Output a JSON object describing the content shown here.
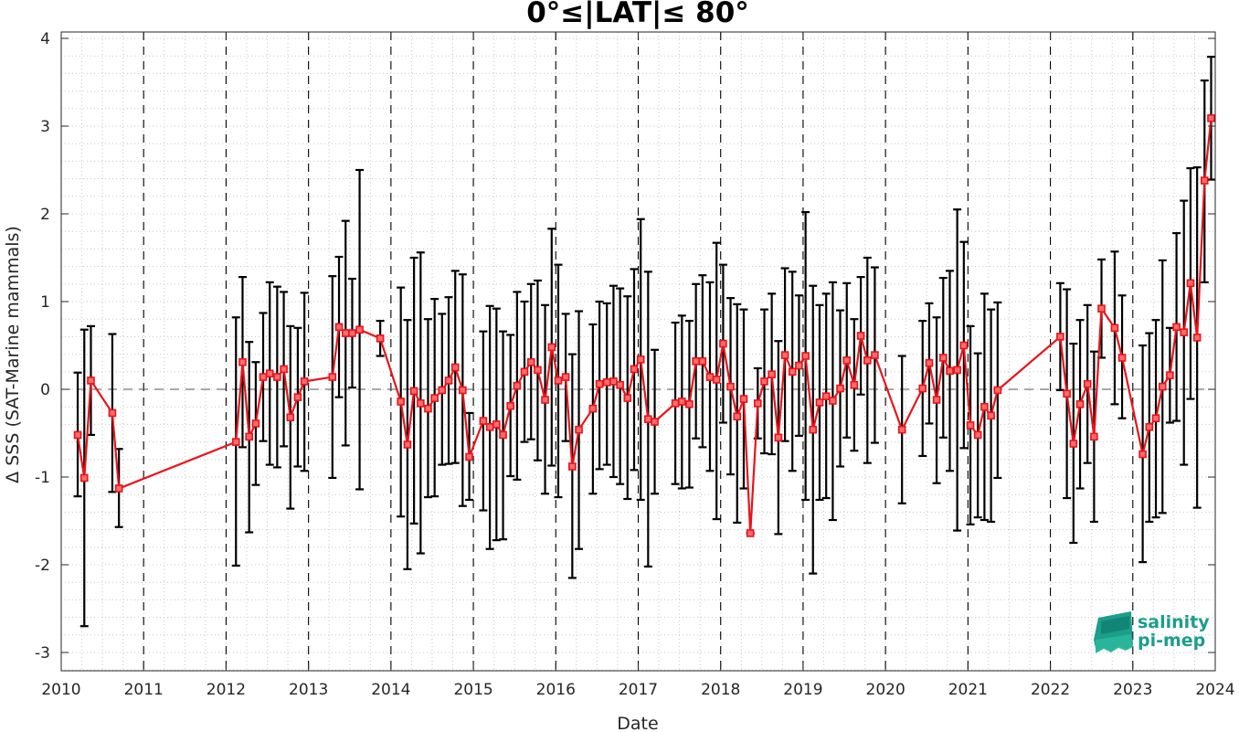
{
  "chart_data": {
    "type": "line",
    "title": "0°≤|LAT|≤ 80°",
    "xlabel": "Date",
    "ylabel": "Δ SSS (SAT-Marine mammals)",
    "xlim": [
      2010,
      2024
    ],
    "ylim": [
      -3.3,
      4.1
    ],
    "xticks": [
      "2010",
      "2011",
      "2012",
      "2013",
      "2014",
      "2015",
      "2016",
      "2017",
      "2018",
      "2019",
      "2020",
      "2021",
      "2022",
      "2023",
      "2024"
    ],
    "yticks": [
      "-3",
      "-2",
      "-1",
      "0",
      "1",
      "2",
      "3",
      "4"
    ],
    "grid": "dotted minor",
    "year_separators": "dashed vertical lines",
    "zero_line": "dashed",
    "series": [
      {
        "color": "#e8141b",
        "marker": "square",
        "error_bar_color": "#000000",
        "points": [
          {
            "x": 2010.2,
            "y": -0.52,
            "lo": -1.22,
            "hi": 0.19
          },
          {
            "x": 2010.28,
            "y": -1.01,
            "lo": -2.7,
            "hi": 0.68
          },
          {
            "x": 2010.36,
            "y": 0.1,
            "lo": -0.52,
            "hi": 0.72
          },
          {
            "x": 2010.62,
            "y": -0.27,
            "lo": -1.17,
            "hi": 0.63
          },
          {
            "x": 2010.7,
            "y": -1.13,
            "lo": -1.57,
            "hi": -0.68
          },
          {
            "x": 2012.12,
            "y": -0.6,
            "lo": -2.01,
            "hi": 0.82
          },
          {
            "x": 2012.2,
            "y": 0.31,
            "lo": -0.66,
            "hi": 1.28
          },
          {
            "x": 2012.28,
            "y": -0.54,
            "lo": -1.63,
            "hi": 0.54
          },
          {
            "x": 2012.36,
            "y": -0.39,
            "lo": -1.09,
            "hi": 0.31
          },
          {
            "x": 2012.45,
            "y": 0.14,
            "lo": -0.59,
            "hi": 0.87
          },
          {
            "x": 2012.53,
            "y": 0.18,
            "lo": -0.86,
            "hi": 1.22
          },
          {
            "x": 2012.62,
            "y": 0.14,
            "lo": -0.89,
            "hi": 1.17
          },
          {
            "x": 2012.7,
            "y": 0.23,
            "lo": -0.65,
            "hi": 1.11
          },
          {
            "x": 2012.78,
            "y": -0.32,
            "lo": -1.36,
            "hi": 0.72
          },
          {
            "x": 2012.87,
            "y": -0.09,
            "lo": -0.88,
            "hi": 0.7
          },
          {
            "x": 2012.95,
            "y": 0.09,
            "lo": -0.93,
            "hi": 1.1
          },
          {
            "x": 2013.29,
            "y": 0.14,
            "lo": -1.01,
            "hi": 1.29
          },
          {
            "x": 2013.37,
            "y": 0.71,
            "lo": -0.09,
            "hi": 1.51
          },
          {
            "x": 2013.45,
            "y": 0.64,
            "lo": -0.64,
            "hi": 1.92
          },
          {
            "x": 2013.53,
            "y": 0.64,
            "lo": 0.02,
            "hi": 1.26
          },
          {
            "x": 2013.62,
            "y": 0.68,
            "lo": -1.14,
            "hi": 2.5
          },
          {
            "x": 2013.87,
            "y": 0.58,
            "lo": 0.38,
            "hi": 0.78
          },
          {
            "x": 2014.12,
            "y": -0.14,
            "lo": -1.45,
            "hi": 1.16
          },
          {
            "x": 2014.2,
            "y": -0.63,
            "lo": -2.05,
            "hi": 0.79
          },
          {
            "x": 2014.28,
            "y": -0.02,
            "lo": -1.53,
            "hi": 1.5
          },
          {
            "x": 2014.36,
            "y": -0.16,
            "lo": -1.87,
            "hi": 1.56
          },
          {
            "x": 2014.45,
            "y": -0.22,
            "lo": -1.23,
            "hi": 0.8
          },
          {
            "x": 2014.53,
            "y": -0.1,
            "lo": -1.22,
            "hi": 1.03
          },
          {
            "x": 2014.62,
            "y": -0.01,
            "lo": -0.86,
            "hi": 0.86
          },
          {
            "x": 2014.7,
            "y": 0.1,
            "lo": -0.85,
            "hi": 1.05
          },
          {
            "x": 2014.78,
            "y": 0.25,
            "lo": -0.84,
            "hi": 1.35
          },
          {
            "x": 2014.87,
            "y": -0.01,
            "lo": -1.33,
            "hi": 1.31
          },
          {
            "x": 2014.95,
            "y": -0.77,
            "lo": -1.26,
            "hi": -0.27
          },
          {
            "x": 2015.12,
            "y": -0.36,
            "lo": -1.38,
            "hi": 0.66
          },
          {
            "x": 2015.2,
            "y": -0.43,
            "lo": -1.82,
            "hi": 0.95
          },
          {
            "x": 2015.28,
            "y": -0.4,
            "lo": -1.72,
            "hi": 0.92
          },
          {
            "x": 2015.36,
            "y": -0.52,
            "lo": -1.71,
            "hi": 0.66
          },
          {
            "x": 2015.45,
            "y": -0.19,
            "lo": -0.99,
            "hi": 0.62
          },
          {
            "x": 2015.53,
            "y": 0.04,
            "lo": -1.03,
            "hi": 1.11
          },
          {
            "x": 2015.62,
            "y": 0.2,
            "lo": -0.6,
            "hi": 1.0
          },
          {
            "x": 2015.7,
            "y": 0.31,
            "lo": -0.57,
            "hi": 1.2
          },
          {
            "x": 2015.78,
            "y": 0.22,
            "lo": -0.81,
            "hi": 1.24
          },
          {
            "x": 2015.87,
            "y": -0.12,
            "lo": -1.19,
            "hi": 0.96
          },
          {
            "x": 2015.95,
            "y": 0.48,
            "lo": -0.87,
            "hi": 1.83
          },
          {
            "x": 2016.03,
            "y": 0.1,
            "lo": -1.23,
            "hi": 1.42
          },
          {
            "x": 2016.12,
            "y": 0.14,
            "lo": -0.59,
            "hi": 0.86
          },
          {
            "x": 2016.2,
            "y": -0.88,
            "lo": -2.15,
            "hi": 0.4
          },
          {
            "x": 2016.28,
            "y": -0.46,
            "lo": -1.82,
            "hi": 0.89
          },
          {
            "x": 2016.45,
            "y": -0.22,
            "lo": -1.19,
            "hi": 0.74
          },
          {
            "x": 2016.53,
            "y": 0.06,
            "lo": -0.91,
            "hi": 1.0
          },
          {
            "x": 2016.62,
            "y": 0.08,
            "lo": -0.86,
            "hi": 0.98
          },
          {
            "x": 2016.7,
            "y": 0.09,
            "lo": -1.0,
            "hi": 1.18
          },
          {
            "x": 2016.78,
            "y": 0.05,
            "lo": -1.08,
            "hi": 1.15
          },
          {
            "x": 2016.87,
            "y": -0.1,
            "lo": -1.25,
            "hi": 1.06
          },
          {
            "x": 2016.95,
            "y": 0.23,
            "lo": -0.92,
            "hi": 1.37
          },
          {
            "x": 2017.03,
            "y": 0.34,
            "lo": -1.26,
            "hi": 1.94
          },
          {
            "x": 2017.12,
            "y": -0.34,
            "lo": -2.02,
            "hi": 1.34
          },
          {
            "x": 2017.2,
            "y": -0.37,
            "lo": -1.19,
            "hi": 0.45
          },
          {
            "x": 2017.45,
            "y": -0.16,
            "lo": -1.08,
            "hi": 0.76
          },
          {
            "x": 2017.53,
            "y": -0.14,
            "lo": -1.13,
            "hi": 0.84
          },
          {
            "x": 2017.62,
            "y": -0.17,
            "lo": -1.12,
            "hi": 0.78
          },
          {
            "x": 2017.7,
            "y": 0.32,
            "lo": -0.56,
            "hi": 1.2
          },
          {
            "x": 2017.78,
            "y": 0.32,
            "lo": -0.66,
            "hi": 1.3
          },
          {
            "x": 2017.87,
            "y": 0.14,
            "lo": -0.93,
            "hi": 1.22
          },
          {
            "x": 2017.95,
            "y": 0.11,
            "lo": -1.48,
            "hi": 1.67
          },
          {
            "x": 2018.03,
            "y": 0.52,
            "lo": -0.38,
            "hi": 1.42
          },
          {
            "x": 2018.12,
            "y": 0.03,
            "lo": -0.97,
            "hi": 1.04
          },
          {
            "x": 2018.2,
            "y": -0.31,
            "lo": -1.52,
            "hi": 0.97
          },
          {
            "x": 2018.28,
            "y": -0.11,
            "lo": -1.13,
            "hi": 0.91
          },
          {
            "x": 2018.36,
            "y": -1.64,
            "lo": -1.64,
            "hi": -1.64
          },
          {
            "x": 2018.45,
            "y": -0.16,
            "lo": -0.56,
            "hi": 0.24
          },
          {
            "x": 2018.53,
            "y": 0.09,
            "lo": -0.73,
            "hi": 0.91
          },
          {
            "x": 2018.62,
            "y": 0.17,
            "lo": -0.74,
            "hi": 1.09
          },
          {
            "x": 2018.7,
            "y": -0.55,
            "lo": -1.65,
            "hi": 0.55
          },
          {
            "x": 2018.78,
            "y": 0.39,
            "lo": -0.59,
            "hi": 1.38
          },
          {
            "x": 2018.87,
            "y": 0.2,
            "lo": -0.93,
            "hi": 1.34
          },
          {
            "x": 2018.95,
            "y": 0.27,
            "lo": -0.53,
            "hi": 1.07
          },
          {
            "x": 2019.03,
            "y": 0.38,
            "lo": -1.26,
            "hi": 2.02
          },
          {
            "x": 2019.12,
            "y": -0.46,
            "lo": -2.1,
            "hi": 1.18
          },
          {
            "x": 2019.2,
            "y": -0.15,
            "lo": -1.26,
            "hi": 0.96
          },
          {
            "x": 2019.28,
            "y": -0.08,
            "lo": -1.24,
            "hi": 1.09
          },
          {
            "x": 2019.36,
            "y": -0.13,
            "lo": -1.49,
            "hi": 1.22
          },
          {
            "x": 2019.45,
            "y": 0.01,
            "lo": -0.88,
            "hi": 0.9
          },
          {
            "x": 2019.53,
            "y": 0.33,
            "lo": -0.55,
            "hi": 1.21
          },
          {
            "x": 2019.62,
            "y": 0.05,
            "lo": -0.7,
            "hi": 0.8
          },
          {
            "x": 2019.7,
            "y": 0.61,
            "lo": -0.06,
            "hi": 1.28
          },
          {
            "x": 2019.78,
            "y": 0.33,
            "lo": -0.84,
            "hi": 1.5
          },
          {
            "x": 2019.87,
            "y": 0.39,
            "lo": -0.61,
            "hi": 1.39
          },
          {
            "x": 2020.2,
            "y": -0.46,
            "lo": -1.3,
            "hi": 0.38
          },
          {
            "x": 2020.45,
            "y": 0.01,
            "lo": -0.76,
            "hi": 0.78
          },
          {
            "x": 2020.53,
            "y": 0.3,
            "lo": -0.39,
            "hi": 0.98
          },
          {
            "x": 2020.62,
            "y": -0.12,
            "lo": -1.07,
            "hi": 0.82
          },
          {
            "x": 2020.7,
            "y": 0.36,
            "lo": -0.55,
            "hi": 1.27
          },
          {
            "x": 2020.78,
            "y": 0.21,
            "lo": -0.93,
            "hi": 1.35
          },
          {
            "x": 2020.87,
            "y": 0.22,
            "lo": -1.61,
            "hi": 2.05
          },
          {
            "x": 2020.95,
            "y": 0.5,
            "lo": -0.67,
            "hi": 1.68
          },
          {
            "x": 2021.03,
            "y": -0.41,
            "lo": -1.54,
            "hi": 0.72
          },
          {
            "x": 2021.12,
            "y": -0.52,
            "lo": -1.46,
            "hi": 0.41
          },
          {
            "x": 2021.2,
            "y": -0.2,
            "lo": -1.49,
            "hi": 1.09
          },
          {
            "x": 2021.28,
            "y": -0.3,
            "lo": -1.51,
            "hi": 0.91
          },
          {
            "x": 2021.36,
            "y": -0.01,
            "lo": -1.01,
            "hi": 0.99
          },
          {
            "x": 2022.12,
            "y": 0.6,
            "lo": -0.01,
            "hi": 1.21
          },
          {
            "x": 2022.2,
            "y": -0.05,
            "lo": -1.24,
            "hi": 1.14
          },
          {
            "x": 2022.28,
            "y": -0.62,
            "lo": -1.75,
            "hi": 0.52
          },
          {
            "x": 2022.36,
            "y": -0.17,
            "lo": -1.13,
            "hi": 0.79
          },
          {
            "x": 2022.45,
            "y": 0.06,
            "lo": -0.84,
            "hi": 0.96
          },
          {
            "x": 2022.53,
            "y": -0.54,
            "lo": -1.51,
            "hi": 0.43
          },
          {
            "x": 2022.62,
            "y": 0.92,
            "lo": 0.36,
            "hi": 1.48
          },
          {
            "x": 2022.78,
            "y": 0.7,
            "lo": -0.17,
            "hi": 1.57
          },
          {
            "x": 2022.87,
            "y": 0.36,
            "lo": -0.33,
            "hi": 1.07
          },
          {
            "x": 2023.12,
            "y": -0.74,
            "lo": -1.97,
            "hi": 0.5
          },
          {
            "x": 2023.2,
            "y": -0.43,
            "lo": -1.51,
            "hi": 0.64
          },
          {
            "x": 2023.28,
            "y": -0.33,
            "lo": -1.46,
            "hi": 0.79
          },
          {
            "x": 2023.36,
            "y": 0.03,
            "lo": -1.41,
            "hi": 1.47
          },
          {
            "x": 2023.45,
            "y": 0.16,
            "lo": -0.38,
            "hi": 0.7
          },
          {
            "x": 2023.53,
            "y": 0.71,
            "lo": -0.36,
            "hi": 1.78
          },
          {
            "x": 2023.62,
            "y": 0.65,
            "lo": -0.86,
            "hi": 2.15
          },
          {
            "x": 2023.7,
            "y": 1.21,
            "lo": -0.11,
            "hi": 2.52
          },
          {
            "x": 2023.78,
            "y": 0.59,
            "lo": -1.35,
            "hi": 2.53
          },
          {
            "x": 2023.87,
            "y": 2.38,
            "lo": 1.22,
            "hi": 3.52
          },
          {
            "x": 2023.95,
            "y": 3.09,
            "lo": 2.39,
            "hi": 3.79
          }
        ]
      }
    ]
  },
  "logo": {
    "line1": "salinity",
    "line2": "pi-mep",
    "icon": "salinity-wave-icon",
    "color": "#1b9e8a"
  }
}
